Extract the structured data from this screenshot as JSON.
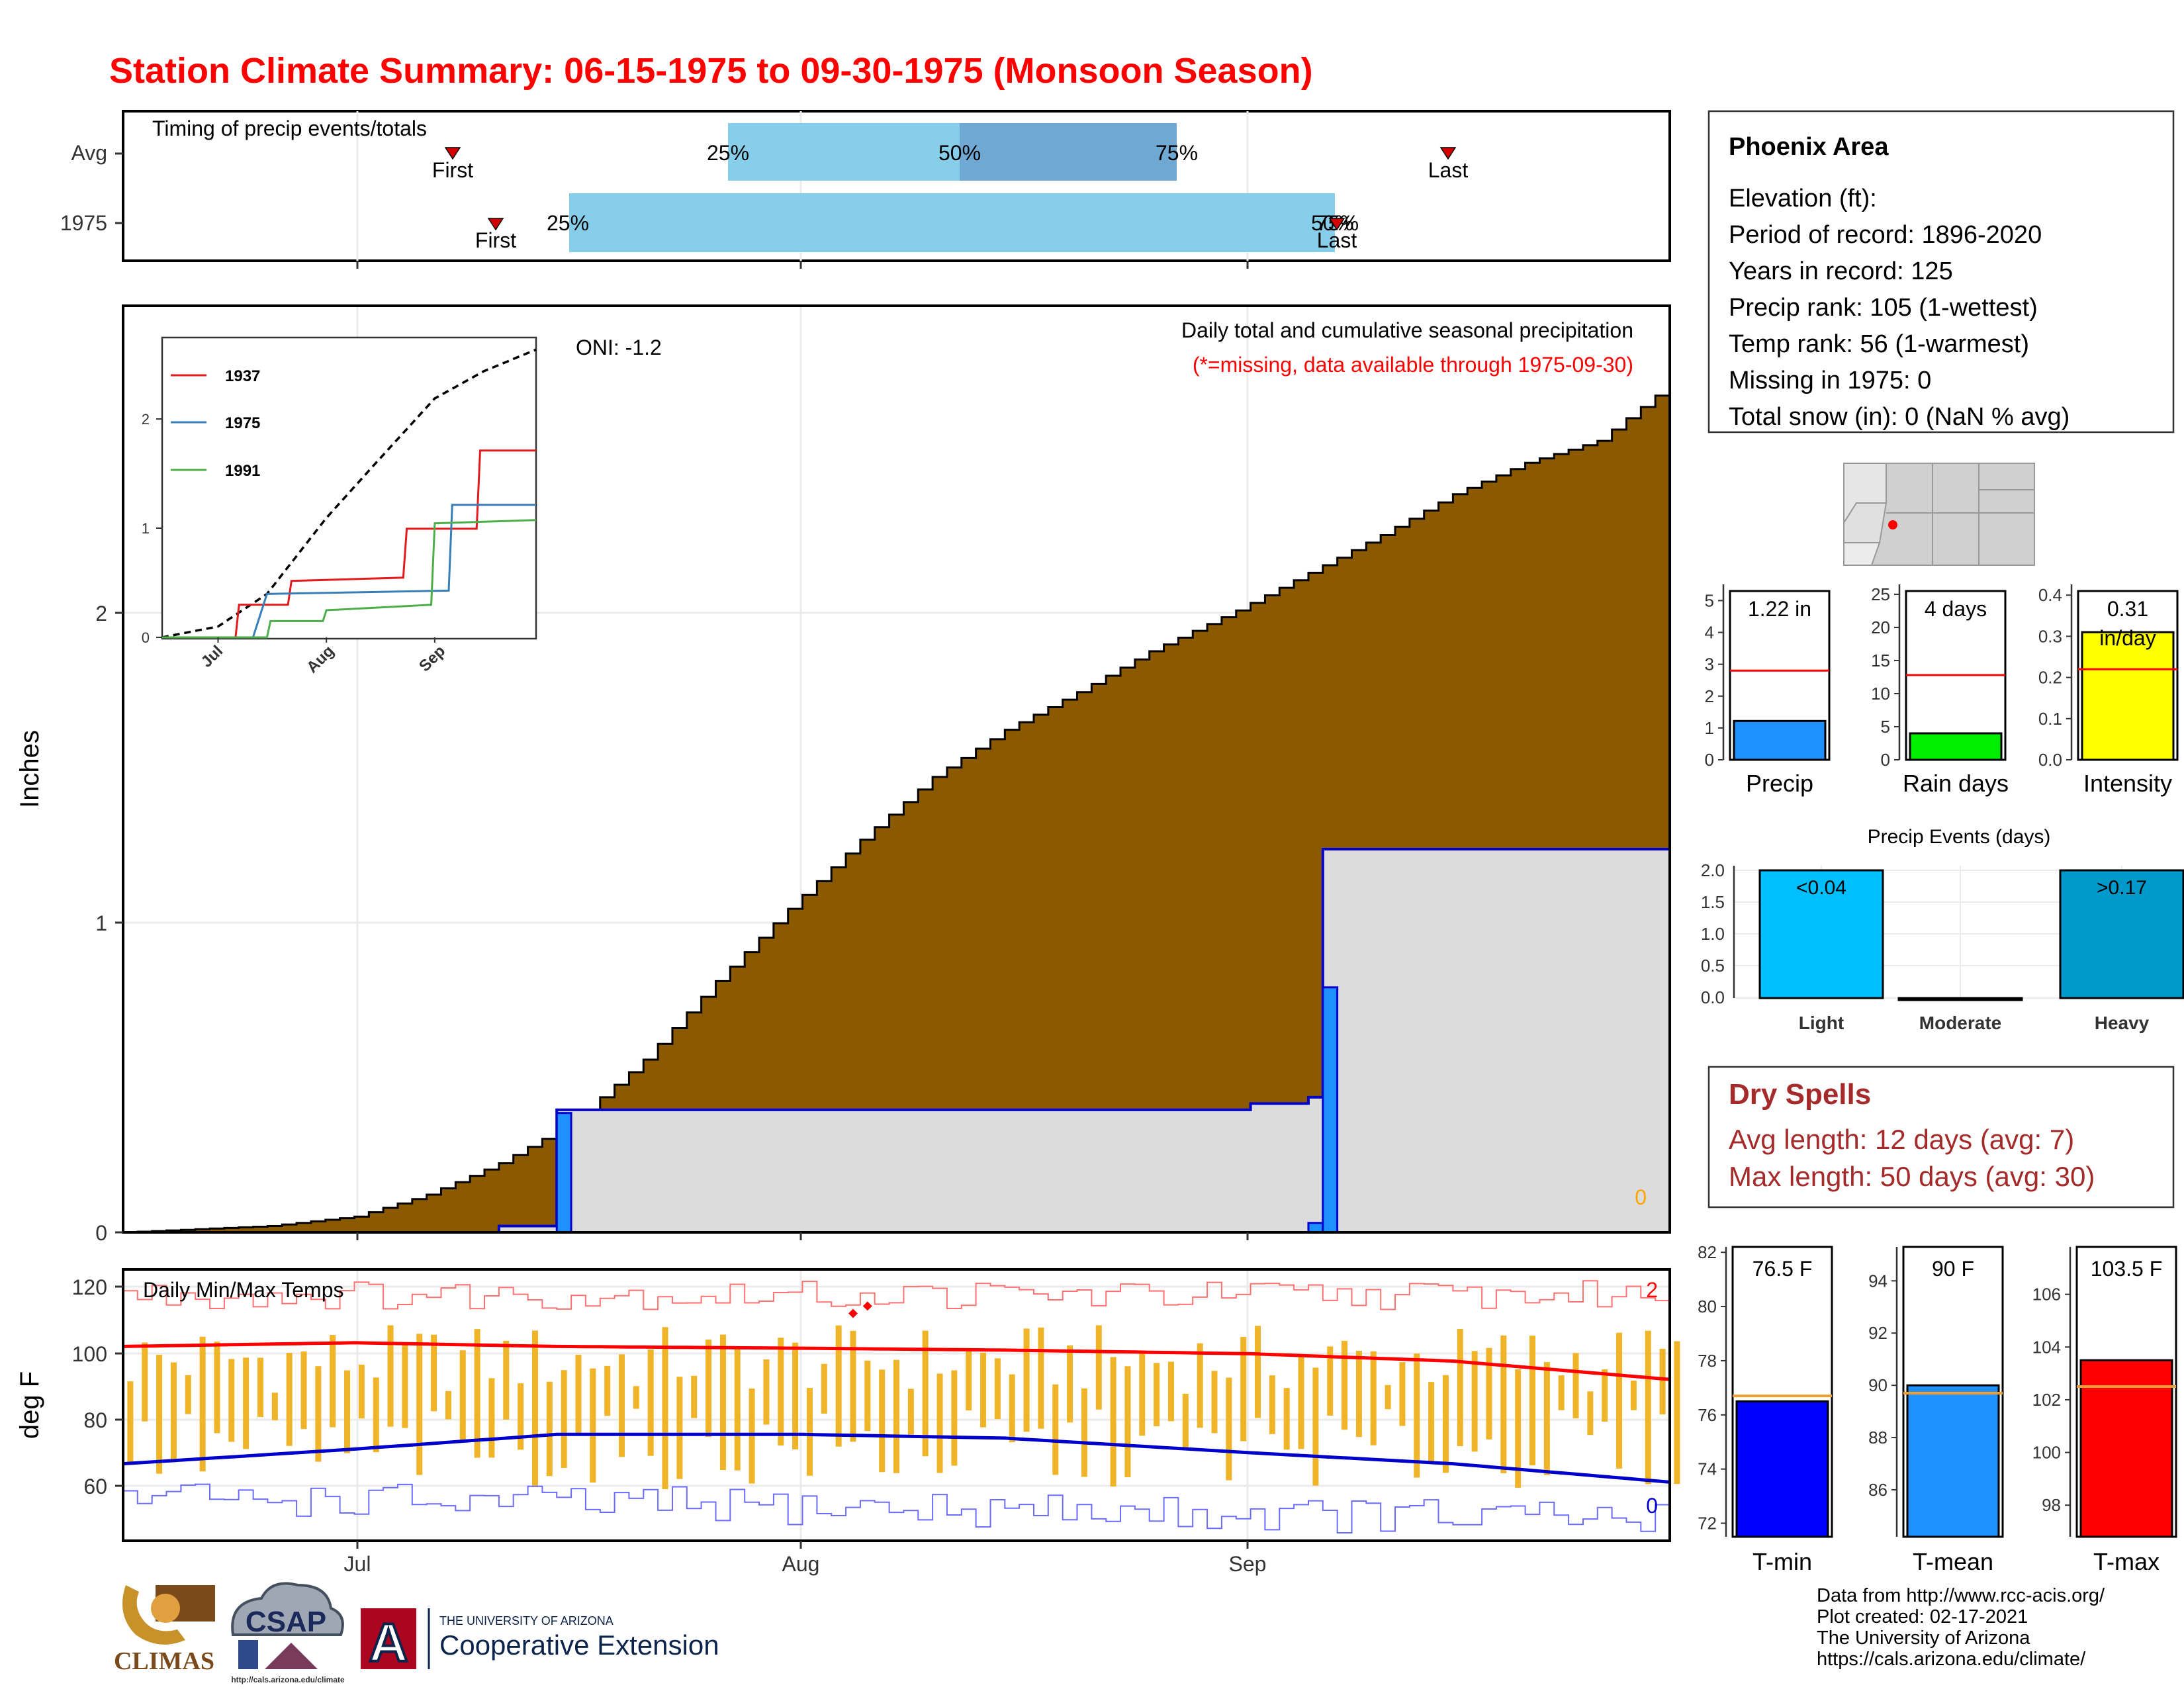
{
  "title": "Station Climate Summary: 06-15-1975 to 09-30-1975 (Monsoon Season)",
  "timing": {
    "label": "Timing of precip events/totals",
    "rows": [
      {
        "row": "Avg",
        "first": "07-08",
        "last": "09-14",
        "q25": "07-22",
        "q50": "08-07",
        "q75": "08-22"
      },
      {
        "row": "1975",
        "first": "07-11",
        "last": "09-06",
        "q25": "07-16",
        "q50": "09-06",
        "q75": "09-06"
      }
    ],
    "first_label": "First",
    "last_label": "Last",
    "p25": "25%",
    "p50": "50%",
    "p75": "75%",
    "colors": {
      "light": "#87ceeb",
      "dark": "#6fa8d2",
      "marker": "#d40000"
    }
  },
  "main": {
    "ylabel": "Inches",
    "oni": "ONI: -1.2",
    "desc": "Daily total and cumulative seasonal precipitation",
    "note": "(*=missing, data available through 1975-09-30)",
    "missing_count": "0",
    "y_ticks": [
      "0",
      "1",
      "2"
    ],
    "x_ticks": [
      "Jul",
      "Aug",
      "Sep"
    ],
    "colors": {
      "avg_fill": "#8b5a00",
      "year_fill": "#dcdcdc",
      "year_line": "#0000cd",
      "daily_bar": "#1e90ff"
    }
  },
  "inset": {
    "legend": [
      {
        "name": "1937",
        "color": "#e41a1c"
      },
      {
        "name": "1975",
        "color": "#377eb8"
      },
      {
        "name": "1991",
        "color": "#4daf4a"
      }
    ],
    "y_ticks": [
      "0",
      "1",
      "2"
    ],
    "x_ticks": [
      "Jul",
      "Aug",
      "Sep"
    ]
  },
  "temps": {
    "label": "Daily Min/Max Temps",
    "ylabel": "deg F",
    "y_ticks": [
      "60",
      "80",
      "100",
      "120"
    ],
    "x_ticks": [
      "Jul",
      "Aug",
      "Sep"
    ],
    "record_high_count": "2",
    "record_low_count": "0",
    "colors": {
      "bars": "#f0b429",
      "avg_max": "#ff0000",
      "avg_min": "#0000cd",
      "rec_high": "#ff7070",
      "rec_low": "#6b6bff"
    }
  },
  "station": {
    "name": "Phoenix Area",
    "lines": [
      "Elevation (ft):",
      "Period of record: 1896-2020",
      "Years in record: 125",
      "Precip rank: 105 (1-wettest)",
      "Temp rank: 56 (1-warmest)",
      "Missing in 1975: 0",
      "Total snow (in): 0 (NaN % avg)"
    ]
  },
  "mini": [
    {
      "label": "Precip",
      "value_text": "1.22 in",
      "value": 1.22,
      "avg": 2.8,
      "max": 5.3,
      "ticks": [
        "0",
        "1",
        "2",
        "3",
        "4",
        "5"
      ],
      "color": "#1e90ff"
    },
    {
      "label": "Rain days",
      "value_text": "4 days",
      "value": 4,
      "avg": 12.8,
      "max": 25.5,
      "ticks": [
        "0",
        "5",
        "10",
        "15",
        "20",
        "25"
      ],
      "color": "#00ee00"
    },
    {
      "label": "Intensity",
      "value_text": "0.31",
      "value_text2": "in/day",
      "value": 0.31,
      "avg": 0.22,
      "max": 0.41,
      "ticks": [
        "0.0",
        "0.1",
        "0.2",
        "0.3",
        "0.4"
      ],
      "color": "#ffff00"
    }
  ],
  "events": {
    "title": "Precip Events (days)",
    "categories": [
      "Light",
      "Moderate",
      "Heavy"
    ],
    "values": [
      2,
      0,
      2
    ],
    "bar_labels": [
      "<0.04",
      "",
      ">0.17"
    ],
    "ticks": [
      "0.0",
      "0.5",
      "1.0",
      "1.5",
      "2.0"
    ],
    "colors": [
      "#00bfff",
      "#000000",
      "#0099cc"
    ]
  },
  "dry": {
    "title": "Dry Spells",
    "avg_line": "Avg length: 12 days (avg: 7)",
    "max_line": "Max length: 50 days (avg: 30)",
    "color": "#a52a2a"
  },
  "tbars": [
    {
      "label": "T-min",
      "value_text": "76.5 F",
      "value": 76.5,
      "avg": 76.7,
      "min": 71.5,
      "max": 82.2,
      "ticks": [
        "72",
        "74",
        "76",
        "78",
        "80",
        "82"
      ],
      "color": "#0000ff"
    },
    {
      "label": "T-mean",
      "value_text": "90 F",
      "value": 90.0,
      "avg": 89.7,
      "min": 84.2,
      "max": 95.3,
      "ticks": [
        "86",
        "88",
        "90",
        "92",
        "94"
      ],
      "color": "#1e90ff"
    },
    {
      "label": "T-max",
      "value_text": "103.5 F",
      "value": 103.5,
      "avg": 102.5,
      "min": 96.8,
      "max": 107.8,
      "ticks": [
        "98",
        "100",
        "102",
        "104",
        "106"
      ],
      "color": "#ff0000"
    }
  ],
  "footer": {
    "lines": [
      "Data from http://www.rcc-acis.org/",
      "Plot created: 02-17-2021",
      "The University of Arizona",
      "https://cals.arizona.edu/climate/"
    ],
    "climas": "CLIMAS",
    "csap": "CSAP",
    "csap_url": "http://cals.arizona.edu/climate",
    "ua_line1": "THE UNIVERSITY OF ARIZONA",
    "ua_line2": "Cooperative Extension",
    "ua_letter": "A"
  },
  "chart_data": [
    {
      "type": "area",
      "title": "Daily total and cumulative seasonal precipitation",
      "ylabel": "Inches",
      "x_range": [
        "06-15",
        "09-30"
      ],
      "ylim": [
        0,
        2.95
      ],
      "series": [
        {
          "name": "",
          "points": [
            [
              "06-15",
              0.0
            ],
            [
              "06-25",
              0.02
            ],
            [
              "07-01",
              0.05
            ],
            [
              "07-06",
              0.12
            ],
            [
              "07-11",
              0.22
            ],
            [
              "07-16",
              0.35
            ],
            [
              "07-21",
              0.55
            ],
            [
              "07-26",
              0.8
            ],
            [
              "07-31",
              1.03
            ],
            [
              "08-05",
              1.25
            ],
            [
              "08-10",
              1.45
            ],
            [
              "08-15",
              1.6
            ],
            [
              "08-20",
              1.72
            ],
            [
              "08-25",
              1.85
            ],
            [
              "08-31",
              1.98
            ],
            [
              "09-05",
              2.1
            ],
            [
              "09-10",
              2.22
            ],
            [
              "09-15",
              2.35
            ],
            [
              "09-20",
              2.45
            ],
            [
              "09-25",
              2.52
            ],
            [
              "09-30",
              2.7
            ]
          ]
        },
        {
          "name": "1975",
          "points": [
            [
              "06-15",
              0.0
            ],
            [
              "07-11",
              0.02
            ],
            [
              "07-14",
              0.02
            ],
            [
              "07-15",
              0.39
            ],
            [
              "09-01",
              0.41
            ],
            [
              "09-05",
              0.43
            ],
            [
              "09-06",
              1.22
            ],
            [
              "09-30",
              1.22
            ]
          ]
        }
      ],
      "daily_bars": [
        {
          "date": "07-15",
          "value": 0.38
        },
        {
          "date": "09-05",
          "value": 0.03
        },
        {
          "date": "09-06",
          "value": 0.78
        }
      ]
    },
    {
      "type": "line",
      "title": "",
      "x_range": [
        "06-15",
        "09-30"
      ],
      "ylim": [
        0,
        2.7
      ],
      "series": [
        {
          "name": "",
          "points": [
            [
              "06-15",
              0.0
            ],
            [
              "07-01",
              0.1
            ],
            [
              "07-15",
              0.4
            ],
            [
              "08-01",
              1.1
            ],
            [
              "08-15",
              1.6
            ],
            [
              "09-01",
              2.2
            ],
            [
              "09-15",
              2.45
            ],
            [
              "09-30",
              2.65
            ]
          ]
        },
        {
          "name": "1937",
          "points": [
            [
              "06-15",
              0.0
            ],
            [
              "07-06",
              0.0
            ],
            [
              "07-07",
              0.3
            ],
            [
              "07-21",
              0.3
            ],
            [
              "07-22",
              0.52
            ],
            [
              "08-23",
              0.55
            ],
            [
              "08-24",
              1.0
            ],
            [
              "09-13",
              1.0
            ],
            [
              "09-14",
              1.72
            ],
            [
              "09-30",
              1.72
            ]
          ]
        },
        {
          "name": "1975",
          "points": [
            [
              "06-15",
              0.0
            ],
            [
              "07-11",
              0.0
            ],
            [
              "07-15",
              0.4
            ],
            [
              "09-05",
              0.43
            ],
            [
              "09-06",
              1.22
            ],
            [
              "09-30",
              1.22
            ]
          ]
        },
        {
          "name": "1991",
          "points": [
            [
              "06-15",
              0.0
            ],
            [
              "07-15",
              0.0
            ],
            [
              "07-16",
              0.15
            ],
            [
              "07-31",
              0.15
            ],
            [
              "08-01",
              0.25
            ],
            [
              "08-31",
              0.3
            ],
            [
              "09-01",
              1.05
            ],
            [
              "09-30",
              1.08
            ]
          ]
        }
      ]
    },
    {
      "type": "bar",
      "title": "Daily Min/Max Temps",
      "ylabel": "deg F",
      "x_range": [
        "06-15",
        "09-30"
      ],
      "ylim": [
        51,
        125
      ],
      "series": [
        {
          "name": "",
          "points": [
            [
              "06-15",
              104
            ],
            [
              "07-01",
              105
            ],
            [
              "07-15",
              104
            ],
            [
              "08-01",
              103.5
            ],
            [
              "08-15",
              103
            ],
            [
              "09-01",
              102
            ],
            [
              "09-15",
              100
            ],
            [
              "09-30",
              95
            ]
          ]
        },
        {
          "name": "",
          "points": [
            [
              "06-15",
              72
            ],
            [
              "07-01",
              76
            ],
            [
              "07-15",
              80
            ],
            [
              "08-01",
              80
            ],
            [
              "08-15",
              79
            ],
            [
              "09-01",
              75
            ],
            [
              "09-15",
              72
            ],
            [
              "09-30",
              67
            ]
          ]
        }
      ],
      "daily_range": {
        "max_from": 91,
        "max_to": 110,
        "min_from": 65,
        "min_to": 87,
        "days": 108
      },
      "record_high_approx": 118,
      "record_low_approx": 63,
      "record_high_days": [
        {
          "date": "08-04",
          "value": 113
        },
        {
          "date": "08-05",
          "value": 115
        }
      ]
    },
    {
      "type": "bar",
      "title": "Precip Events (days)",
      "categories": [
        "Light",
        "Moderate",
        "Heavy"
      ],
      "values": [
        2,
        0,
        2
      ]
    }
  ]
}
